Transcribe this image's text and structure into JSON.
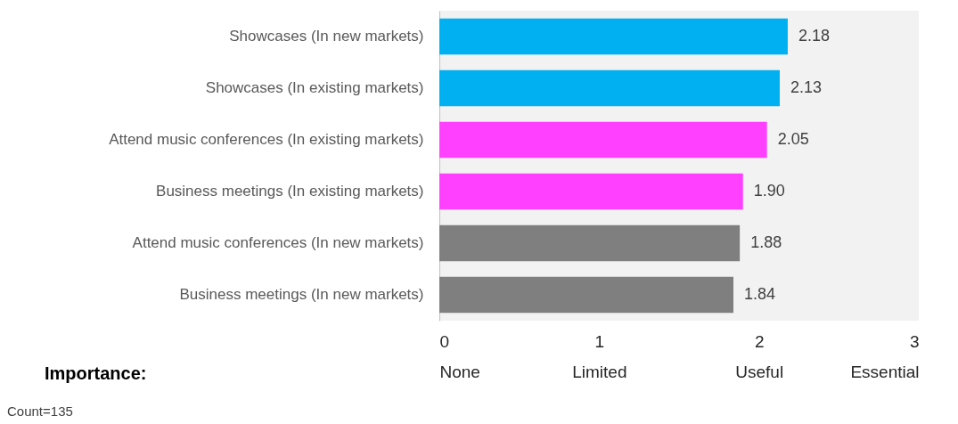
{
  "chart_data": {
    "type": "bar",
    "orientation": "horizontal",
    "categories": [
      "Showcases (In new markets)",
      "Showcases (In existing markets)",
      "Attend music conferences (In existing markets)",
      "Business meetings (In existing markets)",
      "Attend music conferences (In new markets)",
      "Business meetings (In new markets)"
    ],
    "values": [
      2.18,
      2.13,
      2.05,
      1.9,
      1.88,
      1.84
    ],
    "colors": [
      "#00b0f0",
      "#00b0f0",
      "#ff40ff",
      "#ff40ff",
      "#7f7f7f",
      "#7f7f7f"
    ],
    "value_labels": [
      "2.18",
      "2.13",
      "2.05",
      "1.90",
      "1.88",
      "1.84"
    ],
    "xlim": [
      0,
      3
    ],
    "xticks": [
      {
        "value": 0,
        "label": "0\nNone"
      },
      {
        "value": 1,
        "label": "1\nLimited"
      },
      {
        "value": 2,
        "label": "2\nUseful"
      },
      {
        "value": 3,
        "label": "3\nEssential"
      }
    ],
    "xlabel": "Importance:",
    "annotations": [
      "Count=135"
    ]
  }
}
